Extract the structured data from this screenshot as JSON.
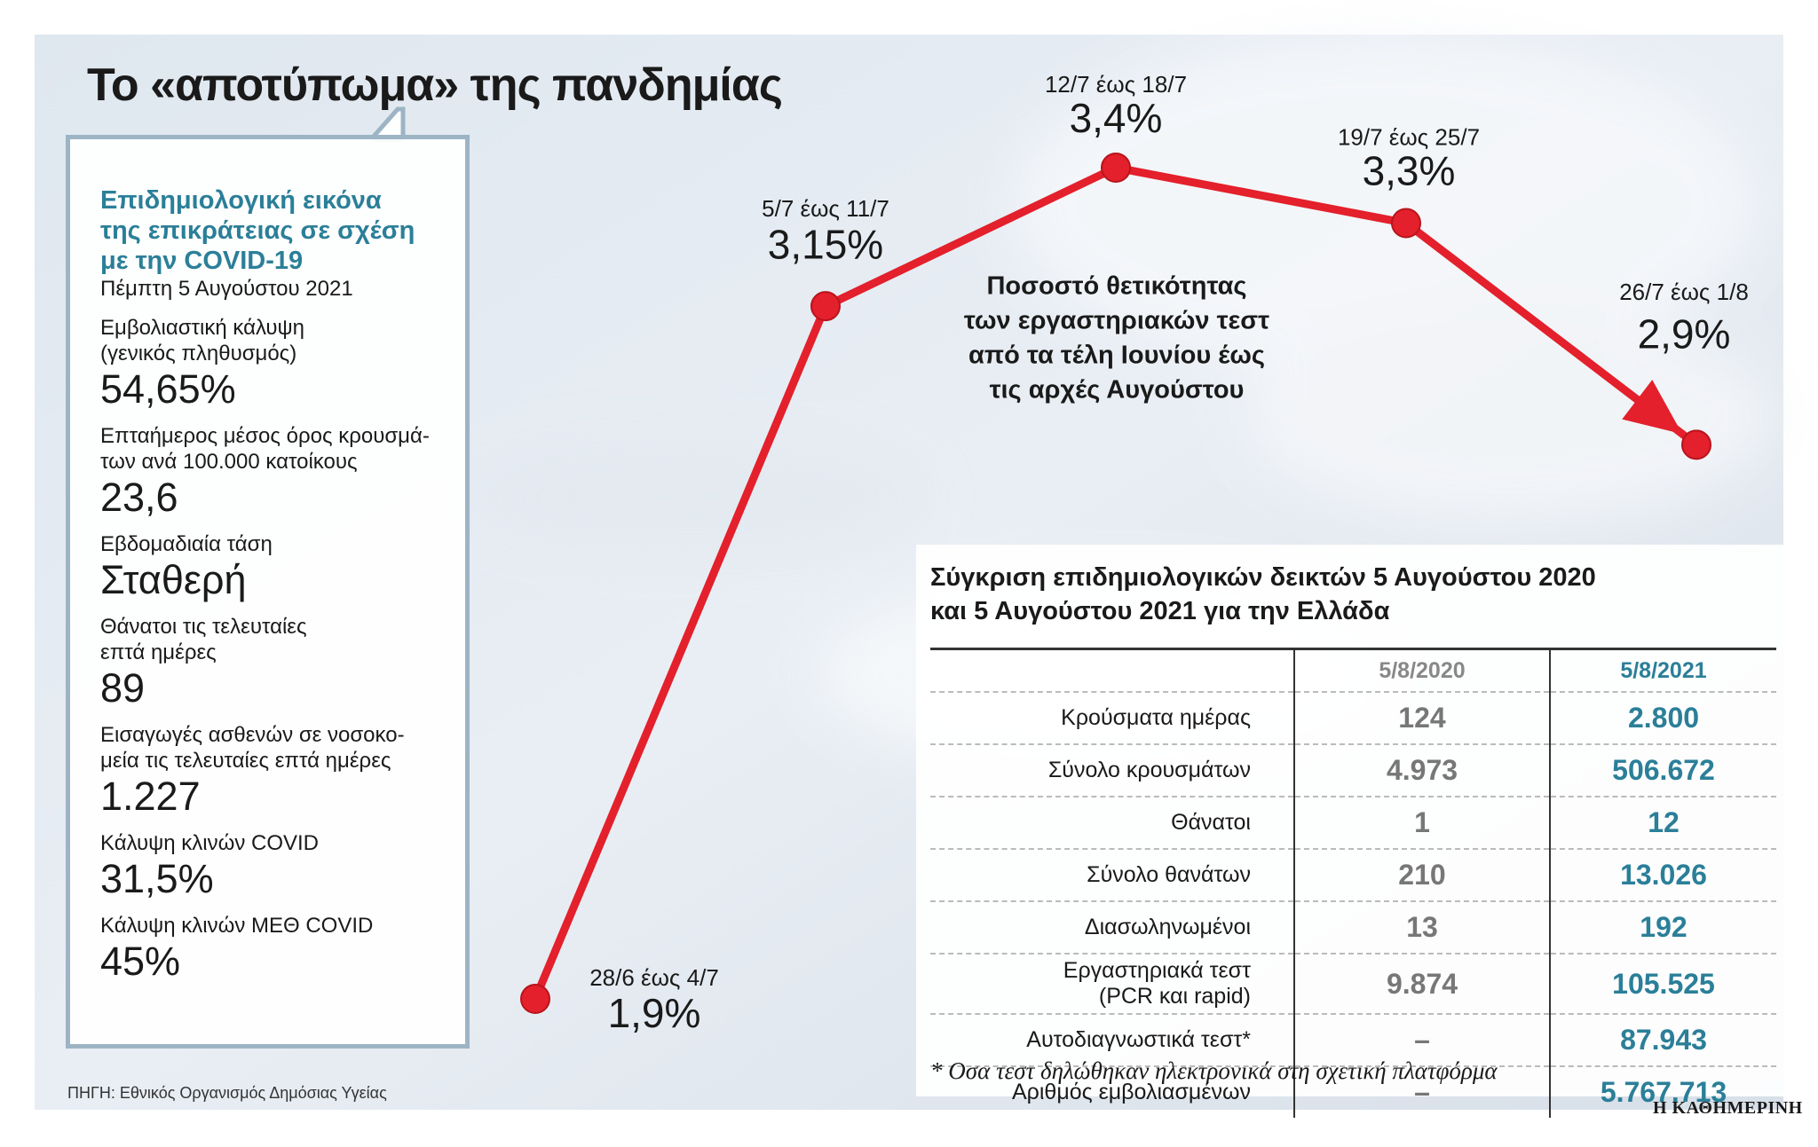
{
  "title": "Το «αποτύπωμα» της πανδημίας",
  "chart_data": {
    "type": "line",
    "annotation": [
      "Ποσοστό θετικότητας",
      "των εργαστηριακών τεστ",
      "από τα τέλη Ιουνίου έως",
      "τις αρχές Αυγούστου"
    ],
    "categories": [
      "28/6 έως 4/7",
      "5/7 έως 11/7",
      "12/7 έως 18/7",
      "19/7 έως 25/7",
      "26/7 έως 1/8"
    ],
    "values": [
      1.9,
      3.15,
      3.4,
      3.3,
      2.9
    ],
    "value_labels": [
      "1,9%",
      "3,15%",
      "3,4%",
      "3,3%",
      "2,9%"
    ],
    "color": "#e3202b"
  },
  "panel": {
    "heading": [
      "Επιδημιολογική εικόνα",
      "της επικράτειας σε σχέση",
      "με την COVID-19"
    ],
    "date": "Πέμπτη 5 Αυγούστου 2021",
    "items": [
      {
        "label": [
          "Εμβολιαστική κάλυψη",
          "(γενικός πληθυσμός)"
        ],
        "value": "54,65%"
      },
      {
        "label": [
          "Επταήμερος μέσος όρος κρουσμά-",
          "των ανά 100.000 κατοίκους"
        ],
        "value": "23,6"
      },
      {
        "label": [
          "Εβδομαδιαία τάση"
        ],
        "value": "Σταθερή"
      },
      {
        "label": [
          "Θάνατοι τις τελευταίες",
          "επτά ημέρες"
        ],
        "value": "89"
      },
      {
        "label": [
          "Εισαγωγές ασθενών σε νοσοκο-",
          "μεία τις τελευταίες επτά ημέρες"
        ],
        "value": "1.227"
      },
      {
        "label": [
          "Κάλυψη κλινών COVID"
        ],
        "value": "31,5%"
      },
      {
        "label": [
          "Κάλυψη κλινών ΜΕΘ COVID"
        ],
        "value": "45%"
      }
    ]
  },
  "table": {
    "title": [
      "Σύγκριση επιδημιολογικών δεικτών 5 Αυγούστου 2020",
      "και 5 Αυγούστου 2021 για την Ελλάδα"
    ],
    "columns": [
      "5/8/2020",
      "5/8/2021"
    ],
    "rows": [
      {
        "label": [
          "Κρούσματα ημέρας"
        ],
        "values": [
          "124",
          "2.800"
        ]
      },
      {
        "label": [
          "Σύνολο κρουσμάτων"
        ],
        "values": [
          "4.973",
          "506.672"
        ]
      },
      {
        "label": [
          "Θάνατοι"
        ],
        "values": [
          "1",
          "12"
        ]
      },
      {
        "label": [
          "Σύνολο θανάτων"
        ],
        "values": [
          "210",
          "13.026"
        ]
      },
      {
        "label": [
          "Διασωληνωμένοι"
        ],
        "values": [
          "13",
          "192"
        ]
      },
      {
        "label": [
          "Εργαστηριακά τεστ",
          "(PCR και rapid)"
        ],
        "values": [
          "9.874",
          "105.525"
        ]
      },
      {
        "label": [
          "Αυτοδιαγνωστικά τεστ*"
        ],
        "values": [
          "–",
          "87.943"
        ]
      },
      {
        "label": [
          "Αριθμός εμβολιασμένων"
        ],
        "values": [
          "–",
          "5.767.713"
        ]
      }
    ],
    "footnote": "* Οσα τεστ δηλώθηκαν ηλεκτρονικά στη σχετική πλατφόρμα"
  },
  "source": "ΠΗΓΗ: Εθνικός Οργανισμός Δημόσιας Υγείας",
  "brand": "Η ΚΑΘΗΜΕΡΙΝΗ"
}
